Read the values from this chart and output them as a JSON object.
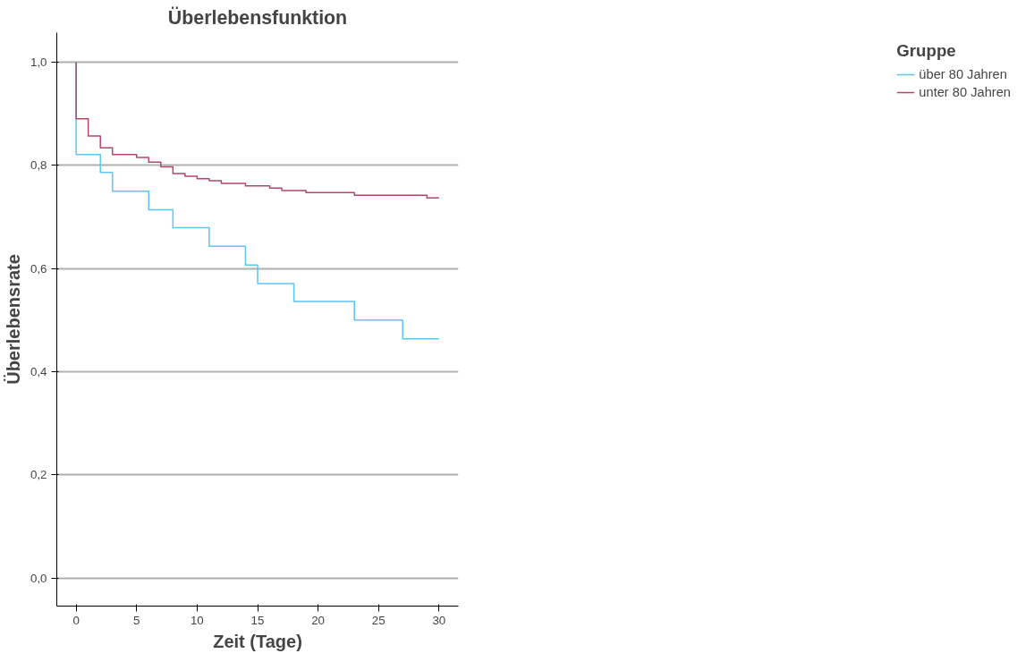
{
  "chart_data": {
    "type": "step",
    "title": "Überlebensfunktion",
    "xlabel": "Zeit (Tage)",
    "ylabel": "Überlebensrate",
    "legend_title": "Gruppe",
    "legend": "right",
    "grid": "y",
    "xlim": [
      -1.6,
      31.6
    ],
    "ylim": [
      -0.054,
      1.057
    ],
    "xticks": [
      0,
      5,
      10,
      15,
      20,
      25,
      30
    ],
    "yticks": [
      {
        "value": 0,
        "label": "0,0"
      },
      {
        "value": 0.2,
        "label": "0,2"
      },
      {
        "value": 0.4,
        "label": "0,4"
      },
      {
        "value": 0.6,
        "label": "0,6"
      },
      {
        "value": 0.8,
        "label": "0,8"
      },
      {
        "value": 1.0,
        "label": "1,0"
      }
    ],
    "series": [
      {
        "name": "über 80 Jahren",
        "color": "#5ec4f5",
        "x": [
          0,
          0,
          2,
          3,
          6,
          8,
          11,
          14,
          15,
          18,
          23,
          27,
          30
        ],
        "values": [
          1.0,
          0.821,
          0.786,
          0.75,
          0.714,
          0.679,
          0.643,
          0.607,
          0.571,
          0.536,
          0.5,
          0.464,
          0.464
        ]
      },
      {
        "name": "unter 80 Jahren",
        "color": "#b5456a",
        "x": [
          0,
          0,
          1,
          2,
          3,
          5,
          6,
          7,
          8,
          9,
          10,
          11,
          12,
          14,
          16,
          17,
          19,
          23,
          29,
          30
        ],
        "values": [
          1.0,
          0.89,
          0.857,
          0.834,
          0.821,
          0.815,
          0.806,
          0.797,
          0.784,
          0.779,
          0.774,
          0.77,
          0.765,
          0.76,
          0.756,
          0.751,
          0.747,
          0.742,
          0.737,
          0.737
        ]
      }
    ]
  }
}
